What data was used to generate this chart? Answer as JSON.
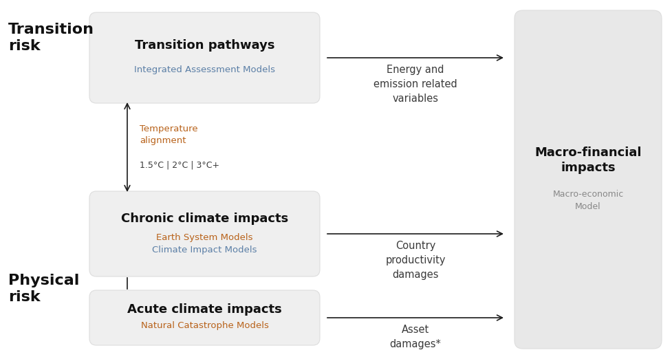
{
  "bg_color": "#ffffff",
  "box_fill": "#efefef",
  "box_edge": "#dddddd",
  "right_panel_fill": "#e8e8e8",
  "right_panel_edge": "#dddddd",
  "arrow_color": "#1a1a1a",
  "title_color": "#111111",
  "subtitle_blue": "#5b7fa6",
  "subtitle_orange": "#b8621a",
  "body_color": "#3a3a3a",
  "macro_subtitle_color": "#888888",
  "transition_label": "Transition\nrisk",
  "physical_label": "Physical\nrisk",
  "box1_title": "Transition pathways",
  "box1_sub": "Integrated Assessment Models",
  "box2_title": "Chronic climate impacts",
  "box2_sub1": "Earth System Models",
  "box2_sub2": "Climate Impact Models",
  "box3_title": "Acute climate impacts",
  "box3_sub": "Natural Catastrophe Models",
  "temp_label": "Temperature\nalignment",
  "temp_values": "1.5°C | 2°C | 3°C+",
  "arrow1_label": "Energy and\nemission related\nvariables",
  "arrow2_label": "Country\nproductivity\ndamages",
  "arrow3_label": "Asset\ndamages*",
  "macro_title": "Macro-financial\nimpacts",
  "macro_sub": "Macro-economic\nModel"
}
